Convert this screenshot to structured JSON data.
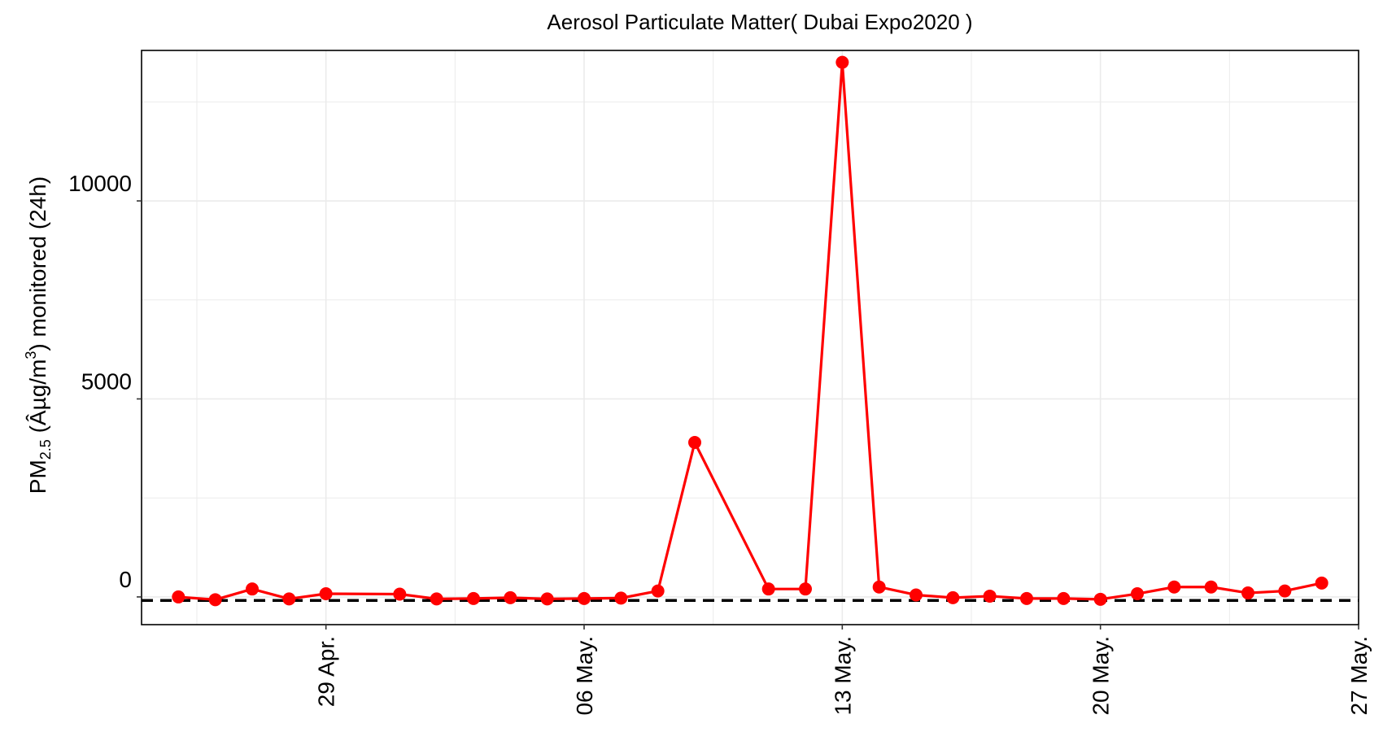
{
  "chart_data": {
    "type": "line",
    "title": "Aerosol Particulate Matter( Dubai Expo2020 )",
    "ylabel": {
      "prefix": "PM",
      "subscript": "2.5",
      "middle": " (Âµg/m",
      "superscript": "3",
      "suffix": ") monitored (24h)"
    },
    "xlim": [
      "2022-04-24",
      "2022-05-27"
    ],
    "ylim": [
      -700,
      13800
    ],
    "x_ticks": [
      {
        "date": "2022-04-29",
        "label": "29 Apr."
      },
      {
        "date": "2022-05-06",
        "label": "06 May."
      },
      {
        "date": "2022-05-13",
        "label": "13 May."
      },
      {
        "date": "2022-05-20",
        "label": "20 May."
      },
      {
        "date": "2022-05-27",
        "label": "27 May."
      }
    ],
    "y_ticks": [
      {
        "value": 0,
        "label": "0"
      },
      {
        "value": 5000,
        "label": "5000"
      },
      {
        "value": 10000,
        "label": "10000"
      }
    ],
    "y_minor_gridlines": [
      2500,
      7500,
      12500
    ],
    "grid": true,
    "reference_line": {
      "y": -90,
      "style": "dashed",
      "color": "#000000"
    },
    "series": [
      {
        "color": "#ff0000",
        "points": [
          {
            "x": "2022-04-25",
            "y": 0
          },
          {
            "x": "2022-04-26",
            "y": -70
          },
          {
            "x": "2022-04-27",
            "y": 200
          },
          {
            "x": "2022-04-28",
            "y": -50
          },
          {
            "x": "2022-04-29",
            "y": 80
          },
          {
            "x": "2022-05-01",
            "y": 70
          },
          {
            "x": "2022-05-02",
            "y": -50
          },
          {
            "x": "2022-05-03",
            "y": -40
          },
          {
            "x": "2022-05-04",
            "y": -20
          },
          {
            "x": "2022-05-05",
            "y": -50
          },
          {
            "x": "2022-05-06",
            "y": -40
          },
          {
            "x": "2022-05-07",
            "y": -30
          },
          {
            "x": "2022-05-08",
            "y": 150
          },
          {
            "x": "2022-05-09",
            "y": 3900
          },
          {
            "x": "2022-05-11",
            "y": 200
          },
          {
            "x": "2022-05-12",
            "y": 200
          },
          {
            "x": "2022-05-13",
            "y": 13500
          },
          {
            "x": "2022-05-14",
            "y": 250
          },
          {
            "x": "2022-05-15",
            "y": 50
          },
          {
            "x": "2022-05-16",
            "y": -20
          },
          {
            "x": "2022-05-17",
            "y": 20
          },
          {
            "x": "2022-05-18",
            "y": -40
          },
          {
            "x": "2022-05-19",
            "y": -40
          },
          {
            "x": "2022-05-20",
            "y": -60
          },
          {
            "x": "2022-05-21",
            "y": 80
          },
          {
            "x": "2022-05-22",
            "y": 250
          },
          {
            "x": "2022-05-23",
            "y": 250
          },
          {
            "x": "2022-05-24",
            "y": 100
          },
          {
            "x": "2022-05-25",
            "y": 150
          },
          {
            "x": "2022-05-26",
            "y": 350
          }
        ]
      }
    ]
  }
}
